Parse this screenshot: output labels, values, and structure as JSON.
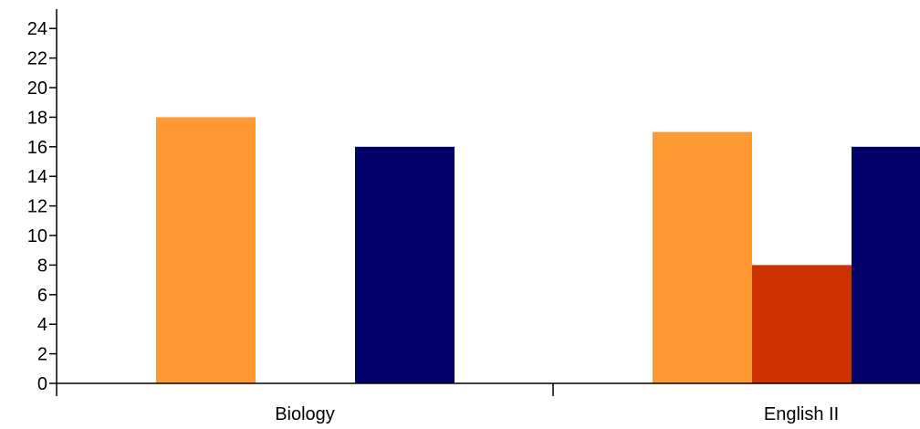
{
  "chart_data": {
    "type": "bar",
    "categories": [
      "Biology",
      "English II"
    ],
    "series": [
      {
        "color": "#FF9933",
        "values": [
          18,
          17
        ]
      },
      {
        "color": "#CC3300",
        "values": [
          0,
          8
        ]
      },
      {
        "color": "#000066",
        "values": [
          16,
          16
        ]
      }
    ],
    "ylim": [
      0,
      25
    ],
    "yticks": [
      0,
      2,
      4,
      6,
      8,
      10,
      12,
      14,
      16,
      18,
      20,
      22,
      24
    ],
    "ytick_labels": [
      "0",
      "2",
      "4",
      "6",
      "8",
      "10",
      "12",
      "14",
      "16",
      "18",
      "20",
      "22",
      "24"
    ],
    "grid": false,
    "legend": "none"
  }
}
